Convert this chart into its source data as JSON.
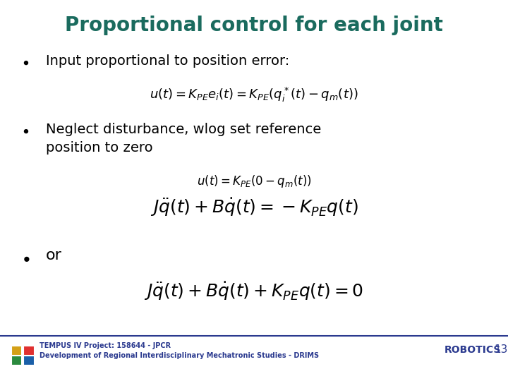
{
  "title": "Proportional control for each joint",
  "title_color": "#1a6b5e",
  "title_fontsize": 20,
  "bg_color": "#ffffff",
  "bullet1_text": "Input proportional to position error:",
  "eq1": "$u(t) = K_{PE}e_i(t) = K_{PE}(q_i^*(t) - q_m(t))$",
  "bullet2_text": "Neglect disturbance, wlog set reference\nposition to zero",
  "eq2": "$u(t) = K_{PE}(0 - q_m(t))$",
  "eq3": "$J\\ddot{q}(t) + B\\dot{q}(t) = -K_{PE}q(t)$",
  "bullet3_text": "or",
  "eq4": "$J\\ddot{q}(t) + B\\dot{q}(t) + K_{PE}q(t) = 0$",
  "footer_left1": "TEMPUS IV Project: 158644 - JPCR",
  "footer_left2": "Development of Regional Interdisciplinary Mechatronic Studies - DRIMS",
  "footer_right1": "ROBOTICS",
  "footer_right2": "13",
  "footer_color": "#2b3a8f",
  "bullet_color": "#000000",
  "text_color": "#000000",
  "eq_color": "#000000",
  "body_fontsize": 14,
  "eq1_fontsize": 13,
  "eq2_fontsize": 12,
  "eq3_fontsize": 18,
  "eq4_fontsize": 18,
  "bullet3_fontsize": 16,
  "footer_fontsize": 7,
  "footer_robotics_fontsize": 10,
  "separator_color": "#2b3a8f",
  "logo_colors": [
    "#d4a017",
    "#2b8a3e",
    "#e03030",
    "#1a5fa8"
  ]
}
